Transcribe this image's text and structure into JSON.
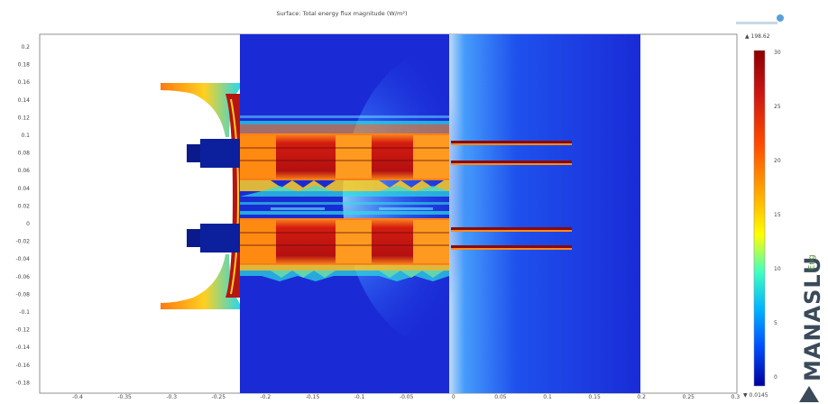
{
  "title": "Surface: Total energy flux magnitude (W/m²)",
  "x_ticks": [
    "-0.4",
    "-0.35",
    "-0.3",
    "-0.25",
    "-0.2",
    "-0.15",
    "-0.1",
    "-0.05",
    "0",
    "0.05",
    "0.1",
    "0.15",
    "0.2",
    "0.25",
    "0.3"
  ],
  "y_ticks": [
    "0.2",
    "0.18",
    "0.16",
    "0.14",
    "0.12",
    "0.1",
    "0.08",
    "0.06",
    "0.04",
    "0.02",
    "0",
    "-0.02",
    "-0.04",
    "-0.06",
    "-0.08",
    "-0.1",
    "-0.12",
    "-0.14",
    "-0.16",
    "-0.18"
  ],
  "colorbar": {
    "max_label": "▲ 198.62",
    "min_label": "▼ 0.0145",
    "ticks": [
      "30",
      "25",
      "20",
      "15",
      "10",
      "5",
      "0"
    ],
    "colors": [
      "#8b0000",
      "#c81414",
      "#ff4a00",
      "#ffa500",
      "#ffff00",
      "#40ffc0",
      "#00b4ff",
      "#0050ff",
      "#0000a0"
    ]
  },
  "brand": {
    "logo_text": "MANASLU",
    "logo_suffix": "Eng"
  },
  "colors": {
    "field_blue": "#1a2bd6",
    "hot_red": "#b71010",
    "orange": "#ff8c1a",
    "yellow": "#f4e020",
    "cyan": "#2ee0e0"
  }
}
